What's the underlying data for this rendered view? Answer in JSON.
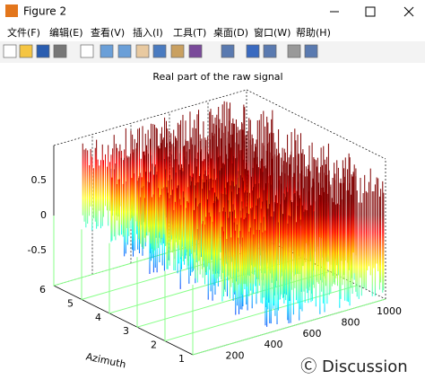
{
  "window": {
    "title": "Figure 2"
  },
  "menu": [
    "文件(F)",
    "编辑(E)",
    "查看(V)",
    "插入(I)",
    "工具(T)",
    "桌面(D)",
    "窗口(W)",
    "帮助(H)"
  ],
  "plot": {
    "title": "Real part of the raw signal",
    "zticks": [
      "0.5",
      "0",
      "-0.5"
    ],
    "yticks": [
      "1",
      "2",
      "3",
      "4",
      "5",
      "6"
    ],
    "xticks": [
      "200",
      "400",
      "600",
      "800",
      "1000"
    ],
    "ylabel": "Azimuth"
  },
  "watermark": "Ⓒ Discussion"
}
